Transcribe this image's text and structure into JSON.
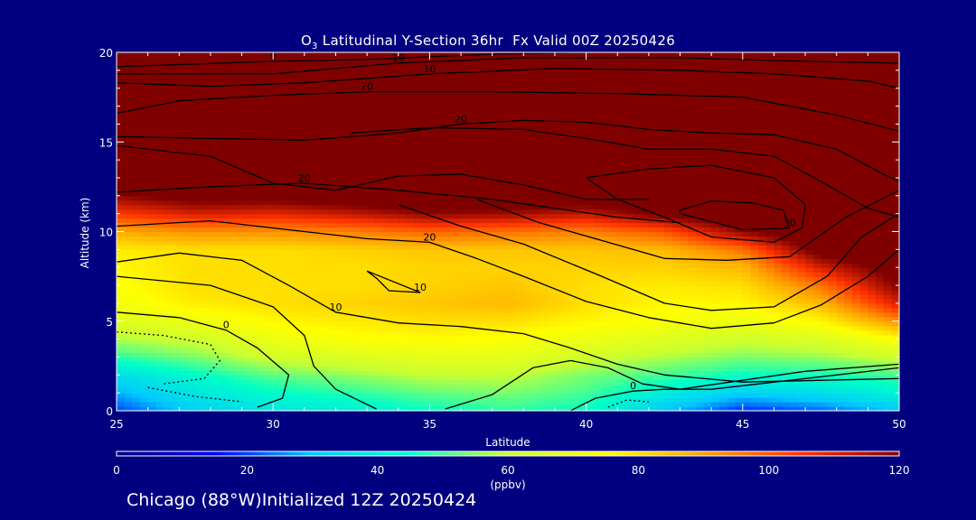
{
  "title": {
    "prefix": "O",
    "sub": "3",
    "rest": " Latitudinal Y-Section 36hr  Fx Valid 00Z 20250426"
  },
  "footer": "Chicago (88°W)Initialized 12Z 20250424",
  "chart_data": {
    "type": "heatmap",
    "title": "O3 Latitudinal Y-Section 36hr  Fx Valid 00Z 20250426",
    "xlabel": "Latitude",
    "ylabel": "Altitude (km)",
    "xlim": [
      25,
      50
    ],
    "ylim": [
      0,
      20
    ],
    "xticks": [
      25,
      30,
      35,
      40,
      45,
      50
    ],
    "yticks": [
      0,
      5,
      10,
      15,
      20
    ],
    "colorbar": {
      "min": 0,
      "max": 120,
      "ticks": [
        0,
        20,
        40,
        60,
        80,
        100,
        120
      ],
      "unit": "(ppbv)",
      "colors": [
        "#000080",
        "#0000ff",
        "#00c8ff",
        "#00ffc8",
        "#c8ff32",
        "#ffff00",
        "#ffa000",
        "#ff3200",
        "#800000"
      ]
    },
    "heatmap_columns_lat": [
      25,
      27.5,
      30,
      32.5,
      35,
      37.5,
      40,
      42.5,
      45,
      47.5,
      50
    ],
    "heatmap_rows_alt": [
      0,
      1,
      2,
      3,
      4,
      5,
      6,
      7,
      8,
      9,
      10,
      11,
      12,
      13,
      14,
      16,
      18,
      20
    ],
    "heatmap_values_ppbv": [
      [
        20,
        32,
        38,
        40,
        45,
        48,
        45,
        30,
        18,
        22,
        30
      ],
      [
        28,
        38,
        44,
        48,
        52,
        54,
        50,
        40,
        32,
        36,
        42
      ],
      [
        36,
        44,
        52,
        56,
        60,
        60,
        54,
        50,
        45,
        46,
        50
      ],
      [
        48,
        54,
        62,
        65,
        68,
        68,
        62,
        58,
        54,
        56,
        62
      ],
      [
        58,
        62,
        70,
        74,
        75,
        74,
        70,
        66,
        62,
        65,
        74
      ],
      [
        66,
        70,
        76,
        78,
        80,
        80,
        76,
        73,
        70,
        76,
        92
      ],
      [
        72,
        78,
        80,
        82,
        84,
        86,
        80,
        76,
        76,
        86,
        110
      ],
      [
        74,
        80,
        80,
        80,
        82,
        84,
        80,
        78,
        80,
        96,
        120
      ],
      [
        76,
        80,
        80,
        80,
        82,
        82,
        82,
        82,
        86,
        110,
        125
      ],
      [
        78,
        80,
        80,
        82,
        84,
        84,
        84,
        86,
        96,
        125,
        130
      ],
      [
        88,
        92,
        92,
        94,
        98,
        96,
        94,
        100,
        118,
        130,
        130
      ],
      [
        104,
        110,
        108,
        112,
        118,
        116,
        112,
        122,
        130,
        130,
        130
      ],
      [
        118,
        124,
        124,
        128,
        130,
        130,
        128,
        130,
        130,
        130,
        130
      ],
      [
        130,
        130,
        130,
        130,
        130,
        130,
        130,
        130,
        130,
        130,
        130
      ],
      [
        130,
        130,
        130,
        130,
        130,
        130,
        130,
        130,
        130,
        130,
        130
      ],
      [
        130,
        130,
        130,
        130,
        130,
        130,
        130,
        130,
        130,
        130,
        130
      ],
      [
        130,
        130,
        130,
        130,
        130,
        130,
        130,
        130,
        130,
        130,
        130
      ],
      [
        130,
        130,
        130,
        130,
        130,
        130,
        130,
        130,
        130,
        130,
        130
      ]
    ],
    "contours": [
      {
        "label": "0",
        "dashed": false,
        "points": [
          [
            25,
            5.5
          ],
          [
            27,
            5.2
          ],
          [
            28.5,
            4.5
          ],
          [
            29.5,
            3.5
          ],
          [
            30.5,
            2
          ],
          [
            30.3,
            0.7
          ],
          [
            29.5,
            0.2
          ]
        ]
      },
      {
        "label": "0",
        "dashed": false,
        "points": [
          [
            39.5,
            0
          ],
          [
            40.3,
            0.7
          ],
          [
            41.5,
            1.1
          ],
          [
            42.5,
            1.2
          ],
          [
            44,
            1.2
          ],
          [
            46.5,
            1.7
          ],
          [
            50,
            2.4
          ]
        ]
      },
      {
        "label": "",
        "dashed": true,
        "points": [
          [
            25,
            4.4
          ],
          [
            26.5,
            4.2
          ],
          [
            28,
            3.7
          ],
          [
            28.3,
            2.8
          ],
          [
            27.8,
            1.8
          ],
          [
            26.5,
            1.5
          ]
        ]
      },
      {
        "label": "",
        "dashed": true,
        "points": [
          [
            26,
            1.3
          ],
          [
            27.5,
            0.8
          ],
          [
            29,
            0.5
          ]
        ]
      },
      {
        "label": "",
        "dashed": true,
        "points": [
          [
            40.7,
            0.2
          ],
          [
            41.3,
            0.6
          ],
          [
            42,
            0.5
          ]
        ]
      },
      {
        "label": "10",
        "dashed": false,
        "points": [
          [
            25,
            8.3
          ],
          [
            27,
            8.8
          ],
          [
            29,
            8.4
          ],
          [
            30.5,
            7
          ],
          [
            32,
            5.5
          ],
          [
            34,
            4.9
          ],
          [
            36,
            4.7
          ],
          [
            38,
            4.3
          ],
          [
            39.5,
            3.5
          ],
          [
            41,
            2.6
          ],
          [
            42.5,
            2
          ],
          [
            45,
            1.6
          ],
          [
            50,
            1.8
          ]
        ]
      },
      {
        "label": "",
        "dashed": false,
        "points": [
          [
            25,
            7.5
          ],
          [
            28,
            7
          ],
          [
            30,
            5.8
          ],
          [
            31,
            4.2
          ],
          [
            31.3,
            2.5
          ],
          [
            32,
            1.2
          ],
          [
            33.3,
            0.1
          ]
        ]
      },
      {
        "label": "",
        "dashed": false,
        "points": [
          [
            35.5,
            0.1
          ],
          [
            37,
            0.9
          ],
          [
            38.3,
            2.4
          ],
          [
            39.5,
            2.8
          ],
          [
            40.7,
            2.4
          ],
          [
            41.8,
            1.5
          ],
          [
            43,
            1.2
          ],
          [
            47,
            2.2
          ],
          [
            50,
            2.6
          ]
        ]
      },
      {
        "label": "10",
        "dashed": false,
        "points": [
          [
            33,
            7.8
          ],
          [
            34.7,
            6.6
          ],
          [
            33.7,
            6.7
          ],
          [
            33.3,
            7.4
          ],
          [
            33,
            7.8
          ]
        ]
      },
      {
        "label": "20",
        "dashed": false,
        "points": [
          [
            25,
            10.3
          ],
          [
            28,
            10.6
          ],
          [
            31,
            10
          ],
          [
            33,
            9.6
          ],
          [
            35,
            9.4
          ],
          [
            36.5,
            8.5
          ],
          [
            38,
            7.5
          ],
          [
            40,
            6.1
          ],
          [
            42,
            5.2
          ],
          [
            44,
            4.6
          ],
          [
            46,
            4.9
          ],
          [
            47.5,
            5.9
          ],
          [
            49,
            7.5
          ],
          [
            50,
            9
          ]
        ]
      },
      {
        "label": "",
        "dashed": false,
        "points": [
          [
            34,
            11.5
          ],
          [
            36,
            10.3
          ],
          [
            38,
            9.3
          ],
          [
            40.5,
            7.5
          ],
          [
            42.5,
            6
          ],
          [
            44,
            5.6
          ],
          [
            46,
            5.8
          ],
          [
            47.7,
            7.5
          ],
          [
            48.8,
            9.7
          ],
          [
            50,
            11
          ]
        ]
      },
      {
        "label": "",
        "dashed": false,
        "points": [
          [
            36.5,
            11.8
          ],
          [
            38.5,
            10.5
          ],
          [
            40.5,
            9.5
          ],
          [
            42.5,
            8.5
          ],
          [
            44.5,
            8.4
          ],
          [
            46.5,
            8.6
          ],
          [
            48.3,
            10.8
          ],
          [
            50,
            12.3
          ]
        ]
      },
      {
        "label": "20",
        "dashed": false,
        "points": [
          [
            25,
            12.2
          ],
          [
            28,
            12.5
          ],
          [
            31,
            12.7
          ],
          [
            34,
            12.3
          ],
          [
            37,
            11.8
          ],
          [
            39,
            11.3
          ],
          [
            41,
            10.8
          ],
          [
            43,
            10.5
          ]
        ]
      },
      {
        "label": "",
        "dashed": false,
        "points": [
          [
            25,
            14.8
          ],
          [
            28,
            14.2
          ],
          [
            30,
            12.7
          ],
          [
            32,
            12.3
          ],
          [
            34,
            13.1
          ],
          [
            36,
            13.2
          ],
          [
            38,
            12.6
          ],
          [
            40,
            11.8
          ],
          [
            42,
            11.8
          ]
        ]
      },
      {
        "label": "30",
        "dashed": false,
        "points": [
          [
            43,
            11
          ],
          [
            45,
            10.1
          ],
          [
            46.5,
            10.2
          ],
          [
            46.3,
            11.2
          ],
          [
            45.3,
            11.6
          ],
          [
            44,
            11.7
          ],
          [
            43,
            11.2
          ],
          [
            43,
            11
          ]
        ]
      },
      {
        "label": "",
        "dashed": false,
        "points": [
          [
            40,
            13
          ],
          [
            42,
            13.5
          ],
          [
            44,
            13.7
          ],
          [
            46,
            13
          ],
          [
            47,
            11.5
          ],
          [
            46.9,
            10.2
          ],
          [
            46,
            9.4
          ],
          [
            44,
            9.7
          ],
          [
            42.5,
            10.8
          ],
          [
            41,
            11.8
          ],
          [
            40,
            13
          ]
        ]
      },
      {
        "label": "20",
        "dashed": false,
        "points": [
          [
            25,
            15.3
          ],
          [
            28,
            15.2
          ],
          [
            31,
            15.1
          ],
          [
            34,
            15.5
          ],
          [
            36,
            16
          ],
          [
            38,
            16.2
          ],
          [
            40,
            16.1
          ],
          [
            42,
            15.7
          ],
          [
            44,
            15.5
          ],
          [
            46,
            15.4
          ],
          [
            48,
            14.6
          ],
          [
            49.5,
            13.2
          ],
          [
            50,
            12.8
          ]
        ]
      },
      {
        "label": "",
        "dashed": false,
        "points": [
          [
            32.5,
            15.5
          ],
          [
            35,
            15.8
          ],
          [
            38,
            15.7
          ],
          [
            40,
            15.2
          ],
          [
            42,
            14.6
          ],
          [
            44,
            14.6
          ],
          [
            46,
            14.2
          ],
          [
            47.5,
            12.8
          ],
          [
            49,
            11.3
          ],
          [
            50,
            10.8
          ]
        ]
      },
      {
        "label": "20",
        "dashed": false,
        "points": [
          [
            25,
            16.6
          ],
          [
            27,
            17.3
          ],
          [
            30,
            17.6
          ],
          [
            33,
            17.8
          ],
          [
            37,
            17.8
          ],
          [
            41,
            17.7
          ],
          [
            45,
            17.5
          ],
          [
            48,
            16.5
          ],
          [
            50,
            15.6
          ]
        ]
      },
      {
        "label": "10",
        "dashed": false,
        "points": [
          [
            25,
            18.3
          ],
          [
            28,
            18.1
          ],
          [
            31,
            18.3
          ],
          [
            35,
            18.8
          ],
          [
            39,
            19.1
          ],
          [
            43,
            19
          ],
          [
            46,
            18.8
          ],
          [
            49,
            18.4
          ],
          [
            50,
            18
          ]
        ]
      },
      {
        "label": "10",
        "dashed": false,
        "points": [
          [
            25,
            18.8
          ],
          [
            30,
            18.8
          ],
          [
            34,
            19.4
          ],
          [
            38,
            19.7
          ],
          [
            43,
            19.7
          ],
          [
            47,
            19.5
          ],
          [
            50,
            19.4
          ]
        ]
      },
      {
        "label": "0",
        "dashed": false,
        "points": [
          [
            25,
            19.2
          ],
          [
            30,
            19.5
          ],
          [
            33,
            19.6
          ],
          [
            37,
            19.9
          ],
          [
            40,
            20
          ]
        ]
      }
    ]
  }
}
